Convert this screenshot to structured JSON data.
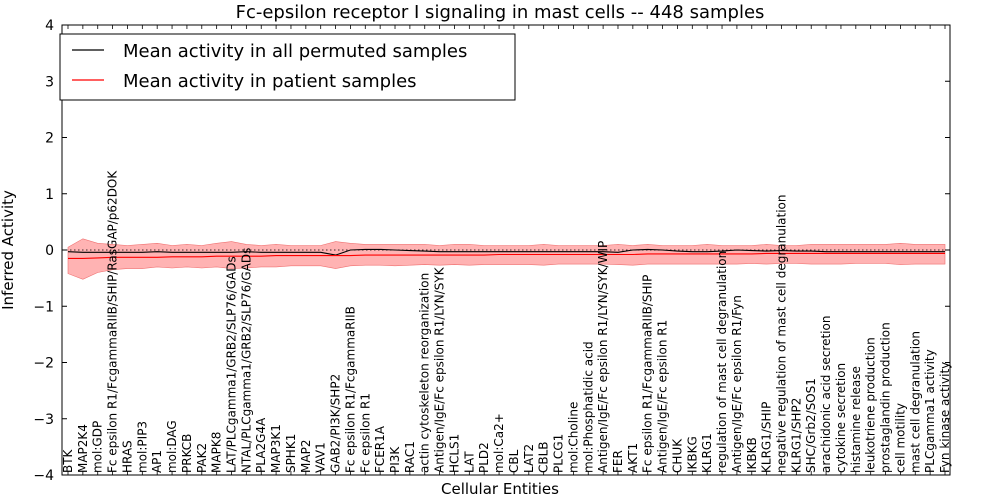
{
  "chart_data": {
    "type": "line",
    "title": "Fc-epsilon receptor I signaling in mast cells -- 448 samples",
    "xlabel": "Cellular Entities",
    "ylabel": "Inferred Activity",
    "ylim": [
      -4,
      4
    ],
    "yticks": [
      "−4",
      "−3",
      "−2",
      "−1",
      "0",
      "1",
      "2",
      "3",
      "4"
    ],
    "legend": {
      "placement": "top-left",
      "entries": [
        "Mean activity in all permuted samples",
        "Mean activity in patient samples"
      ]
    },
    "colors": {
      "permuted": "#000000",
      "patient": "#ff0000",
      "band": "#ff9a9a",
      "band_edge": "#f07070"
    },
    "categories": [
      "BTK",
      "MAP2K4",
      "mol:GDP",
      "Fc epsilon R1/FcgammaRIIB/SHIP/RasGAP/p62DOK",
      "HRAS",
      "mol:PIP3",
      "AP1",
      "mol:DAG",
      "PRKCB",
      "PAK2",
      "MAPK8",
      "LAT/PLCgamma1/GRB2/SLP76/GADs",
      "NTAL/PLCgamma1/GRB2/SLP76/GADs",
      "PLA2G4A",
      "MAP3K1",
      "SPHK1",
      "MAP2",
      "VAV1",
      "GAB2/PI3K/SHP2",
      "Fc epsilon R1/FcgammaRIIB",
      "Fc epsilon R1",
      "FCER1A",
      "PI3K",
      "RAC1",
      "actin cytoskeleton reorganization",
      "Antigen/IgE/Fc epsilon R1/LYN/SYK",
      "HCLS1",
      "LAT",
      "PLD2",
      "mol:Ca2+",
      "CBL",
      "LAT2",
      "CBLB",
      "PLCG1",
      "mol:Choline",
      "mol:Phosphatidic acid",
      "Antigen/IgE/Fc epsilon R1/LYN/SYK/WIP",
      "FER",
      "AKT1",
      "Fc epsilon R1/FcgammaRIIB/SHIP",
      "Antigen/IgE/Fc epsilon R1",
      "CHUK",
      "IKBKG",
      "KLRG1",
      "regulation of mast cell degranulation",
      "Antigen/IgE/Fc epsilon R1/Fyn",
      "IKBKB",
      "KLRG1/SHIP",
      "negative regulation of mast cell degranulation",
      "KLRG1/SHP2",
      "SHC/Grb2/SOS1",
      "arachidonic acid secretion",
      "cytokine secretion",
      "histamine release",
      "leukotriene production",
      "prostaglandin production",
      "cell motility",
      "mast cell degranulation",
      "PLCgamma1 activity",
      "Fyn kinase activity"
    ],
    "series": [
      {
        "name": "Mean activity in all permuted samples",
        "values": [
          -0.03,
          -0.04,
          -0.04,
          -0.04,
          -0.04,
          -0.04,
          -0.03,
          -0.04,
          -0.04,
          -0.04,
          -0.04,
          -0.04,
          -0.03,
          -0.04,
          -0.04,
          -0.04,
          -0.04,
          -0.04,
          -0.09,
          0.0,
          0.01,
          0.01,
          0.0,
          -0.01,
          -0.02,
          -0.03,
          -0.03,
          -0.03,
          -0.03,
          -0.03,
          -0.03,
          -0.03,
          -0.03,
          -0.03,
          -0.03,
          -0.03,
          -0.03,
          -0.04,
          0.0,
          0.01,
          0.0,
          -0.02,
          -0.03,
          -0.03,
          -0.02,
          0.0,
          -0.01,
          -0.02,
          -0.01,
          -0.02,
          -0.02,
          -0.03,
          -0.03,
          -0.03,
          -0.03,
          -0.03,
          -0.03,
          -0.03,
          -0.03,
          -0.03
        ]
      },
      {
        "name": "Mean activity in patient samples",
        "values": [
          -0.15,
          -0.15,
          -0.14,
          -0.13,
          -0.13,
          -0.13,
          -0.13,
          -0.12,
          -0.12,
          -0.12,
          -0.11,
          -0.11,
          -0.11,
          -0.11,
          -0.1,
          -0.1,
          -0.1,
          -0.1,
          -0.1,
          -0.1,
          -0.09,
          -0.09,
          -0.09,
          -0.09,
          -0.09,
          -0.09,
          -0.09,
          -0.09,
          -0.09,
          -0.08,
          -0.08,
          -0.08,
          -0.08,
          -0.08,
          -0.08,
          -0.08,
          -0.08,
          -0.08,
          -0.08,
          -0.07,
          -0.07,
          -0.07,
          -0.07,
          -0.07,
          -0.07,
          -0.07,
          -0.07,
          -0.06,
          -0.06,
          -0.06,
          -0.06,
          -0.06,
          -0.06,
          -0.06,
          -0.06,
          -0.06,
          -0.06,
          -0.06,
          -0.06,
          -0.06
        ]
      }
    ],
    "band": {
      "upper": [
        0.05,
        0.2,
        0.12,
        0.1,
        0.08,
        0.1,
        0.12,
        0.08,
        0.1,
        0.08,
        0.12,
        0.15,
        0.1,
        0.08,
        0.1,
        0.08,
        0.08,
        0.08,
        0.15,
        0.12,
        0.1,
        0.1,
        0.1,
        0.1,
        0.1,
        0.08,
        0.1,
        0.1,
        0.08,
        0.08,
        0.08,
        0.08,
        0.1,
        0.08,
        0.08,
        0.08,
        0.08,
        0.1,
        0.08,
        0.1,
        0.08,
        0.08,
        0.08,
        0.1,
        0.08,
        0.08,
        0.08,
        0.1,
        0.08,
        0.08,
        0.1,
        0.1,
        0.1,
        0.1,
        0.1,
        0.1,
        0.12,
        0.1,
        0.1,
        0.1
      ],
      "lower": [
        -0.42,
        -0.52,
        -0.4,
        -0.35,
        -0.33,
        -0.33,
        -0.3,
        -0.32,
        -0.3,
        -0.32,
        -0.3,
        -0.33,
        -0.32,
        -0.3,
        -0.3,
        -0.28,
        -0.28,
        -0.28,
        -0.33,
        -0.28,
        -0.27,
        -0.27,
        -0.28,
        -0.27,
        -0.26,
        -0.27,
        -0.26,
        -0.27,
        -0.26,
        -0.26,
        -0.26,
        -0.26,
        -0.27,
        -0.25,
        -0.25,
        -0.25,
        -0.25,
        -0.26,
        -0.27,
        -0.25,
        -0.25,
        -0.25,
        -0.25,
        -0.25,
        -0.25,
        -0.25,
        -0.24,
        -0.25,
        -0.24,
        -0.24,
        -0.25,
        -0.25,
        -0.25,
        -0.24,
        -0.24,
        -0.24,
        -0.26,
        -0.25,
        -0.25,
        -0.25
      ]
    }
  }
}
